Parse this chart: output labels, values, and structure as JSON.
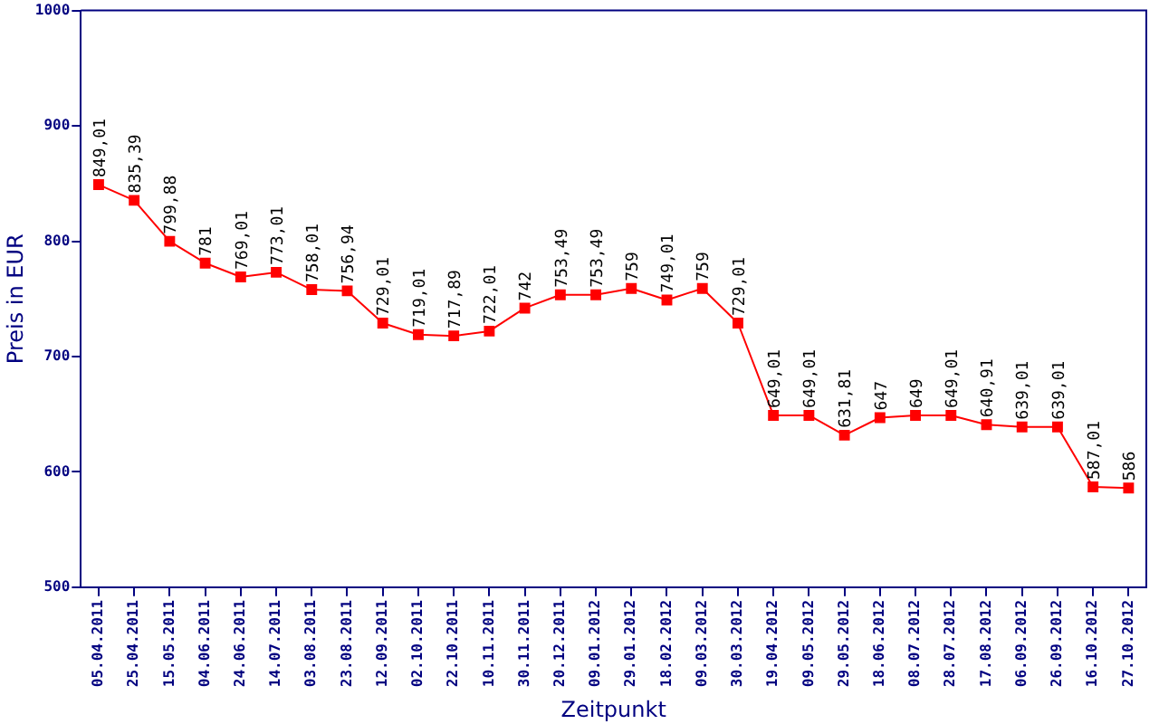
{
  "chart_data": {
    "type": "line",
    "xlabel": "Zeitpunkt",
    "ylabel": "Preis in EUR",
    "categories": [
      "05.04.2011",
      "25.04.2011",
      "15.05.2011",
      "04.06.2011",
      "24.06.2011",
      "14.07.2011",
      "03.08.2011",
      "23.08.2011",
      "12.09.2011",
      "02.10.2011",
      "22.10.2011",
      "10.11.2011",
      "30.11.2011",
      "20.12.2011",
      "09.01.2012",
      "29.01.2012",
      "18.02.2012",
      "09.03.2012",
      "30.03.2012",
      "19.04.2012",
      "09.05.2012",
      "29.05.2012",
      "18.06.2012",
      "08.07.2012",
      "28.07.2012",
      "17.08.2012",
      "06.09.2012",
      "26.09.2012",
      "16.10.2012",
      "27.10.2012"
    ],
    "values": [
      849.01,
      835.39,
      799.88,
      781,
      769.01,
      773.01,
      758.01,
      756.94,
      729.01,
      719.01,
      717.89,
      722.01,
      742,
      753.49,
      753.49,
      759,
      749.01,
      759,
      729.01,
      649.01,
      649.01,
      631.81,
      647,
      649,
      649.01,
      640.91,
      639.01,
      639.01,
      587.01,
      586
    ],
    "value_labels": [
      "849,01",
      "835,39",
      "799,88",
      "781",
      "769,01",
      "773,01",
      "758,01",
      "756,94",
      "729,01",
      "719,01",
      "717,89",
      "722,01",
      "742",
      "753,49",
      "753,49",
      "759",
      "749,01",
      "759",
      "729,01",
      "649,01",
      "649,01",
      "631,81",
      "647",
      "649",
      "649,01",
      "640,91",
      "639,01",
      "639,01",
      "587,01",
      "586"
    ],
    "color": "#ff0000",
    "ylim": [
      500,
      1000
    ],
    "yticks": [
      500,
      600,
      700,
      800,
      900,
      1000
    ],
    "grid": false,
    "legend": false,
    "marker": "square",
    "line_style": "solid"
  }
}
